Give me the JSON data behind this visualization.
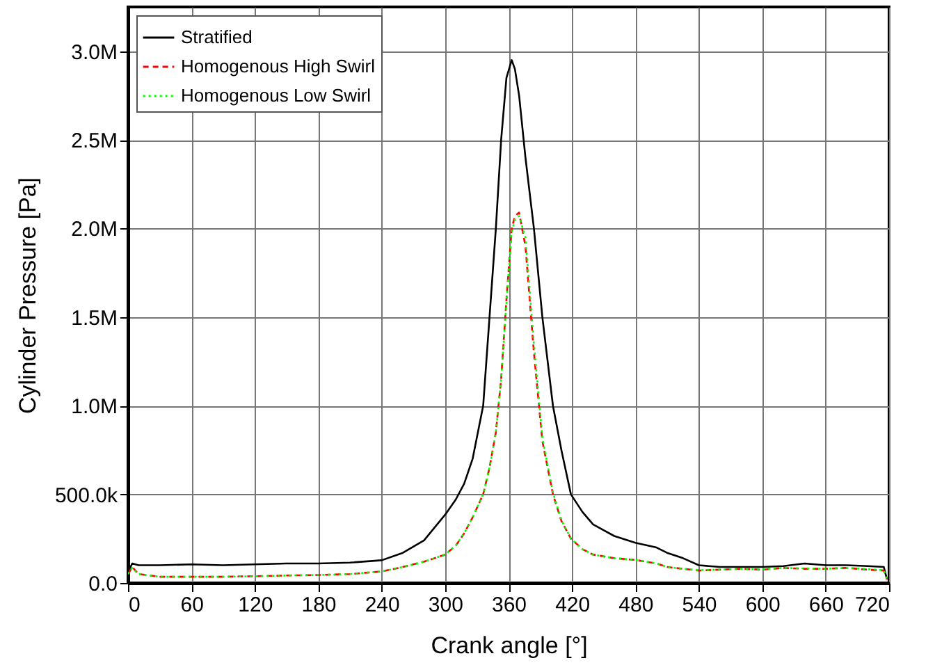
{
  "chart_data": {
    "type": "line",
    "xlabel": "Crank angle [°]",
    "ylabel": "Cylinder Pressure [Pa]",
    "x": [
      0,
      4,
      10,
      30,
      60,
      90,
      120,
      150,
      180,
      210,
      240,
      260,
      280,
      300,
      310,
      318,
      326,
      336,
      342,
      348,
      353,
      358,
      363,
      366,
      370,
      376,
      384,
      392,
      402,
      410,
      419,
      430,
      440,
      460,
      480,
      500,
      510,
      525,
      540,
      560,
      580,
      600,
      620,
      640,
      660,
      680,
      700,
      715,
      718
    ],
    "xlim": [
      0,
      720
    ],
    "ylim": [
      0,
      3250000
    ],
    "xticks": [
      0,
      60,
      120,
      180,
      240,
      300,
      360,
      420,
      480,
      540,
      600,
      660,
      720
    ],
    "yticks": [
      {
        "value": 0,
        "label": "0.0"
      },
      {
        "value": 500000,
        "label": "500.0k"
      },
      {
        "value": 1000000,
        "label": "1.0M"
      },
      {
        "value": 1500000,
        "label": "1.5M"
      },
      {
        "value": 2000000,
        "label": "2.0M"
      },
      {
        "value": 2500000,
        "label": "2.5M"
      },
      {
        "value": 3000000,
        "label": "3.0M"
      }
    ],
    "grid": true,
    "legend": "top left",
    "series": [
      {
        "name": "Stratified",
        "color": "#000000",
        "line_style": "solid",
        "values": [
          60000,
          110000,
          100000,
          100000,
          105000,
          100000,
          105000,
          110000,
          110000,
          115000,
          128000,
          170000,
          240000,
          385000,
          470000,
          560000,
          700000,
          1000000,
          1500000,
          2000000,
          2500000,
          2850000,
          2950000,
          2900000,
          2750000,
          2400000,
          2000000,
          1500000,
          1000000,
          750000,
          500000,
          400000,
          330000,
          265000,
          227000,
          200000,
          170000,
          140000,
          100000,
          90000,
          90000,
          90000,
          95000,
          110000,
          100000,
          100000,
          95000,
          90000,
          20000
        ]
      },
      {
        "name": "Homogenous High Swirl",
        "color": "#ff0000",
        "line_style": "dashed",
        "values": [
          50000,
          90000,
          50000,
          35000,
          35000,
          35000,
          38000,
          42000,
          45000,
          50000,
          65000,
          90000,
          120000,
          160000,
          210000,
          280000,
          370000,
          500000,
          650000,
          850000,
          1150000,
          1600000,
          2000000,
          2070000,
          2090000,
          1900000,
          1300000,
          800000,
          500000,
          350000,
          250000,
          190000,
          160000,
          140000,
          130000,
          110000,
          90000,
          80000,
          70000,
          75000,
          80000,
          75000,
          85000,
          80000,
          80000,
          85000,
          75000,
          70000,
          20000
        ]
      },
      {
        "name": "Homogenous Low Swirl",
        "color": "#00ff00",
        "line_style": "dotted",
        "values": [
          50000,
          85000,
          50000,
          35000,
          35000,
          35000,
          38000,
          42000,
          45000,
          50000,
          65000,
          90000,
          120000,
          160000,
          210000,
          280000,
          370000,
          500000,
          650000,
          850000,
          1150000,
          1580000,
          1980000,
          2050000,
          2070000,
          1950000,
          1350000,
          820000,
          510000,
          355000,
          250000,
          190000,
          160000,
          140000,
          130000,
          110000,
          90000,
          80000,
          72000,
          75000,
          80000,
          78000,
          85000,
          82000,
          80000,
          85000,
          78000,
          72000,
          20000
        ]
      }
    ]
  }
}
